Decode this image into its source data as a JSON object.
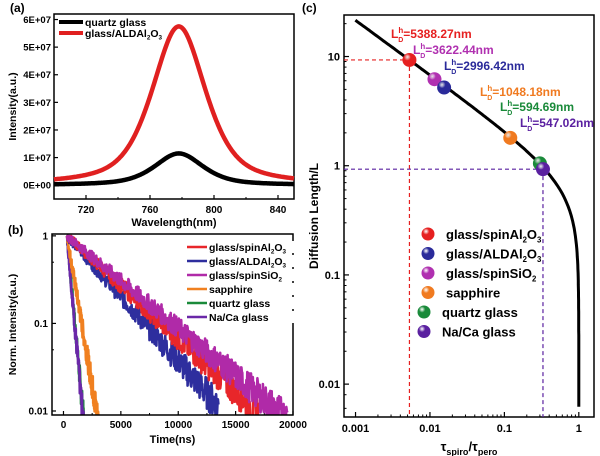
{
  "chart_data": [
    {
      "panel": "(a)",
      "type": "line",
      "xlabel": "Wavelength(nm)",
      "ylabel": "Intensity(a.u.)",
      "xlim": [
        700,
        850
      ],
      "ylim": [
        -5000000,
        62000000
      ],
      "xticks": [
        720,
        760,
        800,
        840
      ],
      "xtick_labels": [
        "720",
        "760",
        "800",
        "840"
      ],
      "yticks": [
        0,
        10000000,
        20000000,
        30000000,
        40000000,
        50000000,
        60000000
      ],
      "ytick_labels": [
        "0E+00",
        "1E+07",
        "2E+07",
        "3E+07",
        "4E+07",
        "5E+07",
        "6E+07"
      ],
      "legend_position": "top-left",
      "series": [
        {
          "name": "quartz glass",
          "color": "#000000",
          "peak_x": 778,
          "peak_y": 11500000,
          "fwhm": 36
        },
        {
          "name": "glass/ALDAl2O3",
          "name_display": [
            "glass/ALDAl",
            "2",
            "O",
            "3"
          ],
          "color": "#e02020",
          "peak_x": 778,
          "peak_y": 57500000,
          "fwhm": 40
        }
      ]
    },
    {
      "panel": "(b)",
      "type": "line",
      "xlabel": "Time(ns)",
      "ylabel": "Norm. Intensity(a.u.)",
      "yscale": "log",
      "xlim": [
        -1000,
        20000
      ],
      "ylim": [
        0.009,
        1.05
      ],
      "xticks": [
        0,
        5000,
        10000,
        15000,
        20000
      ],
      "xtick_labels": [
        "0",
        "5000",
        "10000",
        "15000",
        "20000"
      ],
      "yticks": [
        0.01,
        0.1,
        1
      ],
      "ytick_labels": [
        "0.01",
        "0.1",
        "1"
      ],
      "legend_position": "top-right",
      "series": [
        {
          "name": "glass/spinAl2O3",
          "name_display": [
            "glass/spinAl",
            "2",
            "O",
            "3"
          ],
          "color": "#e8262a",
          "t_end": 17000,
          "decay_ns": 3600
        },
        {
          "name": "glass/ALDAl2O3",
          "name_display": [
            "glass/ALDAl",
            "2",
            "O",
            "3"
          ],
          "color": "#2e2e9e",
          "t_end": 13500,
          "decay_ns": 2950
        },
        {
          "name": "glass/spinSiO2",
          "name_display": [
            "glass/spinSiO",
            "2",
            "",
            ""
          ],
          "color": "#b02aa8",
          "t_end": 19500,
          "decay_ns": 4000
        },
        {
          "name": "sapphire",
          "name_display": [
            "sapphire",
            "",
            "",
            ""
          ],
          "color": "#f08020",
          "t_end": 3100,
          "decay_ns": 560
        },
        {
          "name": "quartz glass",
          "name_display": [
            "quartz glass",
            "",
            "",
            ""
          ],
          "color": "#1a8a3a",
          "t_end": 1900,
          "decay_ns": 300
        },
        {
          "name": "Na/Ca glass",
          "name_display": [
            "Na/Ca glass",
            "",
            "",
            ""
          ],
          "color": "#6a28a8",
          "t_end": 1900,
          "decay_ns": 290
        }
      ]
    },
    {
      "panel": "(c)",
      "type": "scatter",
      "xlabel": "τspiro/τpero",
      "xlabel_parts": [
        "τ",
        "spiro",
        "/τ",
        "pero"
      ],
      "ylabel": "Diffusion Length/L",
      "xscale": "log",
      "yscale": "log",
      "xlim": [
        0.0007,
        1.6
      ],
      "ylim": [
        0.005,
        24
      ],
      "xticks": [
        0.001,
        0.01,
        0.1,
        1
      ],
      "xtick_labels": [
        "0.001",
        "0.01",
        "0.1",
        "1"
      ],
      "yticks": [
        0.01,
        0.1,
        1,
        10
      ],
      "ytick_labels": [
        "0.01",
        "0.1",
        "1",
        "10"
      ],
      "curve": "L/L = sqrt(2(1 - x)/x) style diffusion relation",
      "legend_position": "center-left",
      "points": [
        {
          "name": "glass/spinAl2O3",
          "name_display": [
            "glass/spinAl",
            "2",
            "O",
            "3"
          ],
          "x": 0.0053,
          "y": 9.3,
          "color": "#e62020",
          "label": "=5388.27nm"
        },
        {
          "name": "glass/ALDAl2O3",
          "name_display": [
            "glass/ALDAl",
            "2",
            "O",
            "3"
          ],
          "x": 0.0155,
          "y": 5.2,
          "color": "#2a2a9a",
          "label": "=2996.42nm"
        },
        {
          "name": "glass/spinSiO2",
          "name_display": [
            "glass/spinSiO",
            "2",
            "",
            ""
          ],
          "x": 0.0115,
          "y": 6.2,
          "color": "#b030b0",
          "label": "=3622.44nm"
        },
        {
          "name": "sapphire",
          "name_display": [
            "sapphire",
            "",
            "",
            ""
          ],
          "x": 0.12,
          "y": 1.8,
          "color": "#f07a20",
          "label": "=1048.18nm"
        },
        {
          "name": "quartz glass",
          "name_display": [
            "quartz glass",
            "",
            "",
            ""
          ],
          "x": 0.3,
          "y": 1.05,
          "color": "#1a8a3a",
          "label": "=594.69nm"
        },
        {
          "name": "Na/Ca glass",
          "name_display": [
            "Na/Ca glass",
            "",
            "",
            ""
          ],
          "x": 0.33,
          "y": 0.93,
          "color": "#5a20a0",
          "label": "=547.02nm"
        }
      ],
      "annotation_prefix": "L",
      "annotation_sup": "h",
      "annotation_sub": "D",
      "guide_lines": [
        {
          "x": 0.0053,
          "y": 9.3,
          "color": "#e62020"
        },
        {
          "x": 0.33,
          "y": 0.93,
          "color": "#5a20a0"
        }
      ]
    }
  ]
}
